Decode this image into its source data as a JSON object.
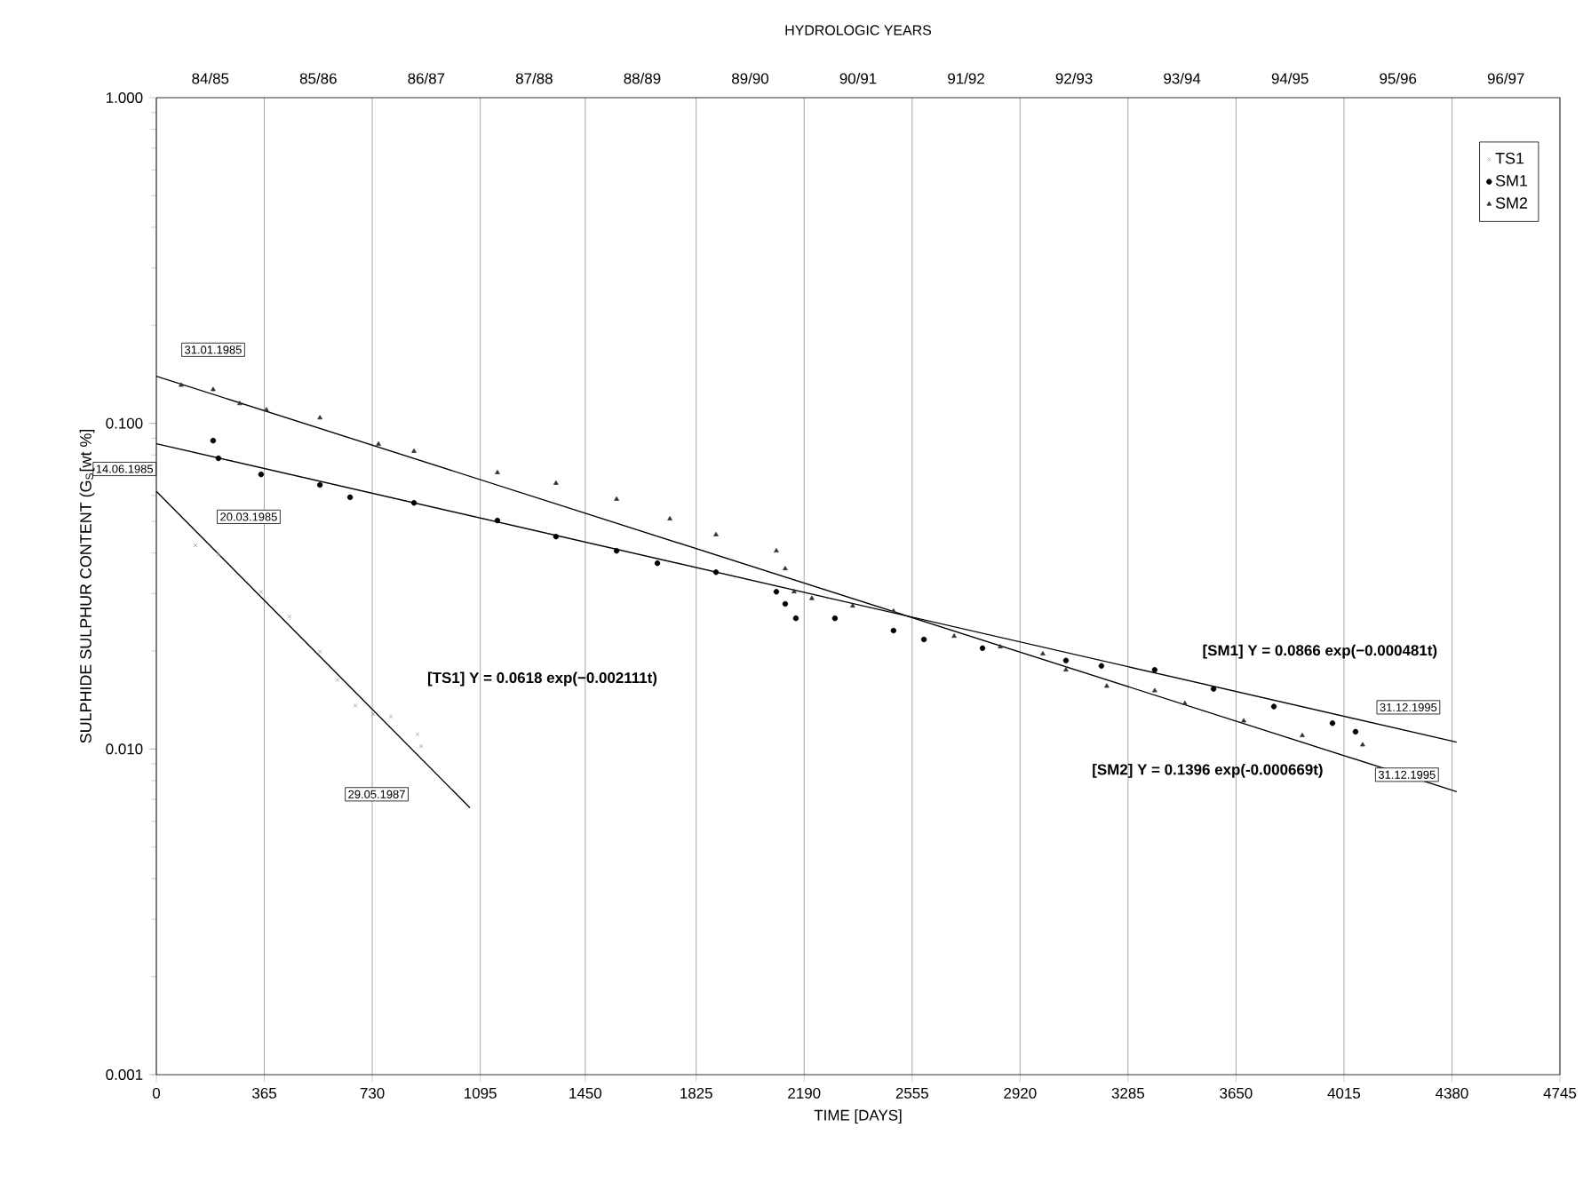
{
  "chart_data": {
    "type": "scatter",
    "xlabel": "TIME  [DAYS]",
    "ylabel": "SULPHIDE SULPHUR CONTENT (G$_{S}$[wt %]",
    "x2label": "HYDROLOGIC    YEARS",
    "log": "y",
    "grid": "x",
    "legend": "top right",
    "xlim": [
      0,
      4745
    ],
    "xticks": [
      0,
      365,
      730,
      1095,
      1450,
      1825,
      2190,
      2555,
      2920,
      3285,
      3650,
      4015,
      4380,
      4745
    ],
    "ylim": [
      0.001,
      1
    ],
    "yticks": [
      {
        "value": 0.001,
        "label": "0.001"
      },
      {
        "value": 0.01,
        "label": "0.010"
      },
      {
        "value": 0.1,
        "label": "0.100"
      },
      {
        "value": 1,
        "label": "1.000"
      }
    ],
    "series": [
      {
        "name": "TS1",
        "color": "#999999",
        "marker": "cross",
        "x": [
          132,
          210,
          354,
          450,
          553,
          613,
          673,
          733,
          793,
          883,
          895
        ],
        "values": [
          0.0422,
          0.0396,
          0.0304,
          0.0255,
          0.0199,
          0.0163,
          0.0136,
          0.0128,
          0.0126,
          0.0111,
          0.0102
        ]
      },
      {
        "name": "SM1",
        "color": "#000000",
        "marker": "circle",
        "x": [
          192,
          210,
          354,
          553,
          655,
          871,
          1153,
          1351,
          1556,
          1694,
          1892,
          2096,
          2126,
          2162,
          2294,
          2492,
          2595,
          2793,
          3075,
          3195,
          3375,
          3574,
          3778,
          3976,
          4054
        ],
        "values": [
          0.0885,
          0.0781,
          0.0697,
          0.0647,
          0.0593,
          0.057,
          0.0503,
          0.0449,
          0.0406,
          0.0372,
          0.0349,
          0.0304,
          0.0279,
          0.0252,
          0.0252,
          0.0231,
          0.0217,
          0.0204,
          0.0187,
          0.018,
          0.0175,
          0.0153,
          0.0135,
          0.012,
          0.0113
        ]
      },
      {
        "name": "SM2",
        "color": "#333333",
        "marker": "triangle",
        "x": [
          84,
          192,
          282,
          372,
          553,
          751,
          871,
          1153,
          1351,
          1556,
          1736,
          1892,
          2096,
          2126,
          2156,
          2216,
          2354,
          2492,
          2697,
          2853,
          2997,
          3075,
          3213,
          3375,
          3477,
          3676,
          3874,
          4078
        ],
        "values": [
          0.131,
          0.127,
          0.115,
          0.11,
          0.104,
          0.0863,
          0.0821,
          0.0706,
          0.0655,
          0.0585,
          0.0509,
          0.0455,
          0.0406,
          0.0358,
          0.0304,
          0.029,
          0.0275,
          0.0265,
          0.0222,
          0.0206,
          0.0196,
          0.0175,
          0.0156,
          0.0151,
          0.0138,
          0.0122,
          0.011,
          0.0103
        ]
      },
      {
        "type": "line",
        "color": "#000000",
        "line_style": "solid",
        "x": [
          0,
          1060
        ],
        "values": [
          0.0618,
          0.0066
        ]
      },
      {
        "type": "line",
        "color": "#000000",
        "line_style": "solid",
        "x": [
          0,
          4396
        ],
        "values": [
          0.0866,
          0.0105
        ]
      },
      {
        "type": "line",
        "color": "#000000",
        "line_style": "solid",
        "x": [
          0,
          4396
        ],
        "values": [
          0.1396,
          0.0074
        ]
      }
    ],
    "annotations": [
      "84/85",
      "85/86",
      "86/87",
      "87/88",
      "88/89",
      "89/90",
      "90/91",
      "91/92",
      "92/93",
      "93/94",
      "94/95",
      "95/96",
      "96/97",
      "31.01.1985",
      "14.06.1985",
      "20.03.1985",
      "29.05.1987",
      "[TS1] Y = 0.0618 exp(−0.002111t)",
      "[SM1] Y = 0.0866 exp(−0.000481t)",
      "31.12.1995",
      "[SM2] Y = 0.1396 exp(-0.000669t)",
      "31.12.1995"
    ]
  }
}
